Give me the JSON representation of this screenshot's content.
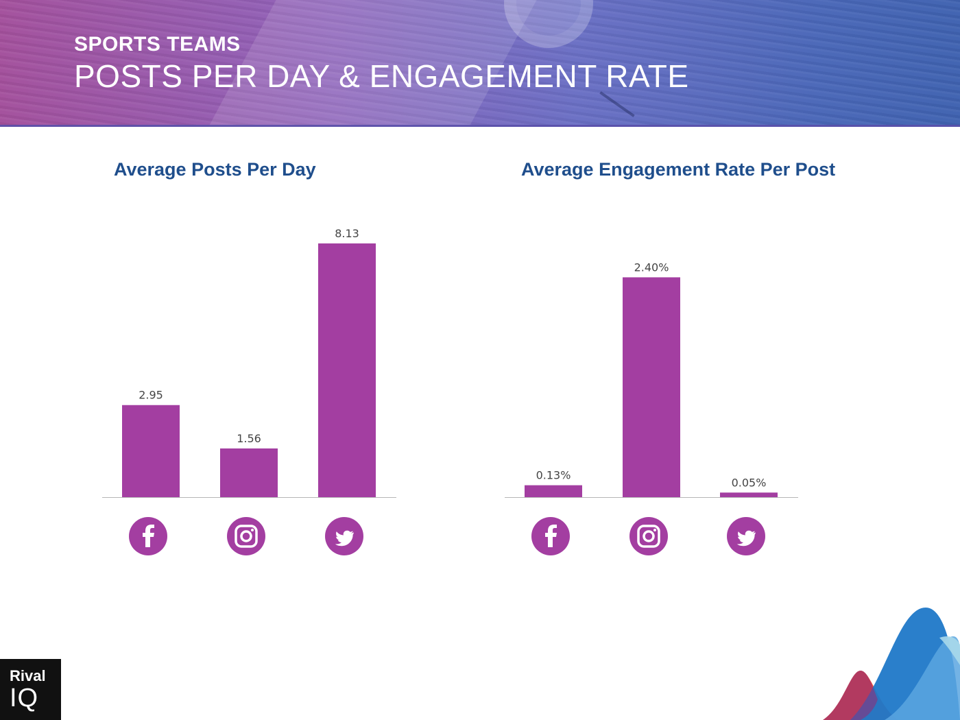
{
  "header": {
    "eyebrow": "SPORTS TEAMS",
    "title": "POSTS PER DAY & ENGAGEMENT RATE"
  },
  "colors": {
    "bar": "#a33ea1",
    "icon_bg": "#a33ea1",
    "axis": "#b5b5b5",
    "chart_title": "#1f4e8c",
    "label": "#444444"
  },
  "chart_data": [
    {
      "type": "bar",
      "title": "Average Posts Per Day",
      "categories": [
        "facebook-icon",
        "instagram-icon",
        "twitter-icon"
      ],
      "values": [
        2.95,
        1.56,
        8.13
      ],
      "value_labels": [
        "2.95",
        "1.56",
        "8.13"
      ],
      "ylim": [
        0,
        8.13
      ],
      "grid": false,
      "xlabel": "",
      "ylabel": ""
    },
    {
      "type": "bar",
      "title": "Average Engagement Rate Per Post",
      "categories": [
        "facebook-icon",
        "instagram-icon",
        "twitter-icon"
      ],
      "values": [
        0.13,
        2.4,
        0.05
      ],
      "value_labels": [
        "0.13%",
        "2.40%",
        "0.05%"
      ],
      "ylim": [
        0,
        2.77
      ],
      "grid": false,
      "xlabel": "",
      "ylabel": ""
    }
  ],
  "logo": {
    "line1": "Rival",
    "line2": "IQ"
  }
}
